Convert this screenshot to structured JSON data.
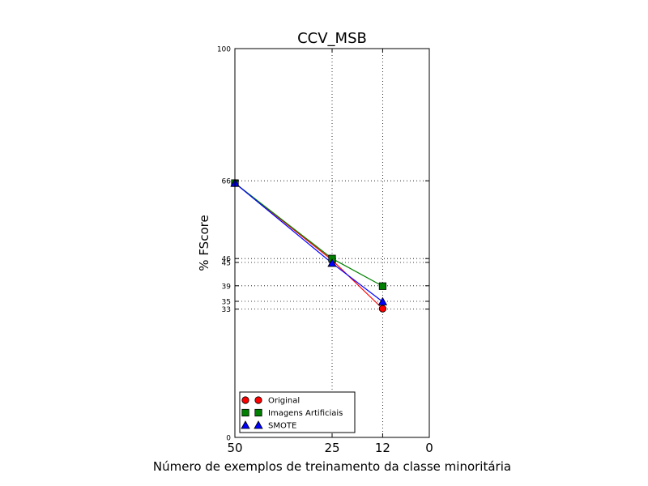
{
  "chart_data": {
    "type": "line",
    "title": "CCV_MSB",
    "xlabel": "Número de exemplos de treinamento da classe minoritária",
    "ylabel": "% FScore",
    "xlim": [
      50,
      0
    ],
    "ylim": [
      0,
      100
    ],
    "x": [
      50,
      25,
      12
    ],
    "x_ticks": [
      50,
      25,
      12,
      0
    ],
    "x_tick_labels": [
      "50",
      "25",
      "12",
      "0"
    ],
    "y_ticks": [
      0,
      33,
      35,
      39,
      45,
      46,
      66,
      100
    ],
    "y_tick_labels": [
      "0",
      "33",
      "35",
      "39",
      "45",
      "46",
      "66",
      "100"
    ],
    "grid": "dotted",
    "legend_position": "lower-left",
    "series": [
      {
        "name": "Original",
        "values": [
          65.4,
          45.6,
          33.1
        ],
        "color": "#ff0000",
        "marker": "circle"
      },
      {
        "name": "Imagens Artificiais",
        "values": [
          65.4,
          46.0,
          38.9
        ],
        "color": "#008000",
        "marker": "square"
      },
      {
        "name": "SMOTE",
        "values": [
          65.4,
          44.8,
          34.9
        ],
        "color": "#0000ff",
        "marker": "triangle"
      }
    ]
  }
}
